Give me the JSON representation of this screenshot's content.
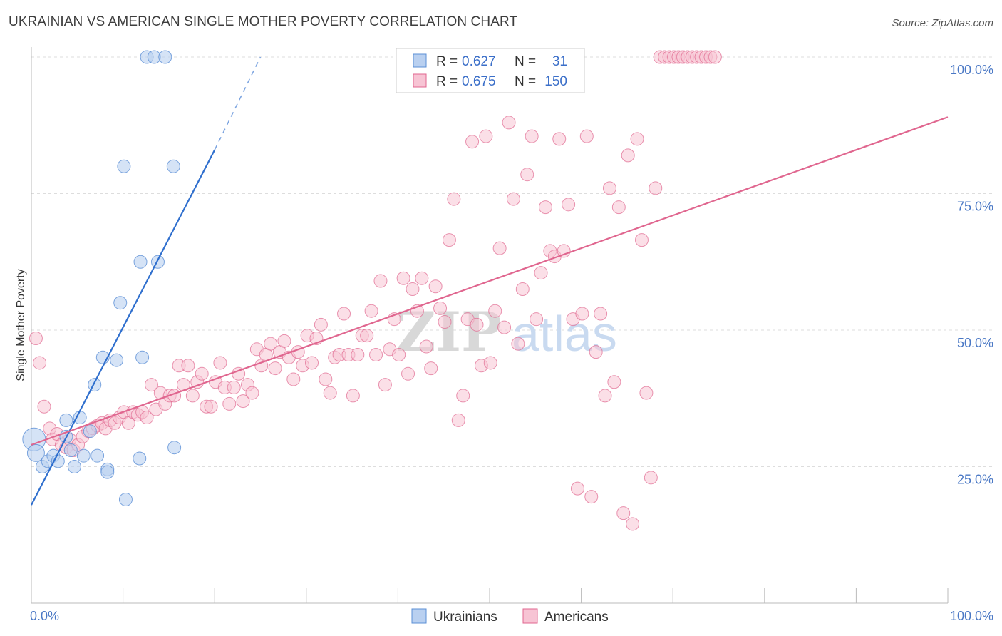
{
  "title": "UKRAINIAN VS AMERICAN SINGLE MOTHER POVERTY CORRELATION CHART",
  "source": "Source: ZipAtlas.com",
  "watermark": {
    "zip": "ZIP",
    "atlas": "atlas"
  },
  "colors": {
    "ukrainians": "#5b8fd6",
    "ukrainians_fill": "#b9d0f0",
    "americans": "#e0668f",
    "americans_fill": "#f7c4d4",
    "axis_label": "#4a78c5",
    "grid": "#dddddd"
  },
  "legend_box": {
    "rows": [
      {
        "r_label": "R = ",
        "r_value": "0.627",
        "n_label": "N = ",
        "n_value": "31"
      },
      {
        "r_label": "R = ",
        "r_value": "0.675",
        "n_label": "N = ",
        "n_value": "150"
      }
    ]
  },
  "bottom_legend": [
    "Ukrainians",
    "Americans"
  ],
  "chart_data": {
    "type": "scatter",
    "title": "UKRAINIAN VS AMERICAN SINGLE MOTHER POVERTY CORRELATION CHART",
    "xlabel": "",
    "ylabel": "Single Mother Poverty",
    "xlim": [
      0,
      100
    ],
    "ylim": [
      0,
      100
    ],
    "x_tick_labels": [
      "0.0%",
      "100.0%"
    ],
    "y_tick_labels": [
      "25.0%",
      "50.0%",
      "75.0%",
      "100.0%"
    ],
    "y_ticks": [
      25,
      50,
      75,
      100
    ],
    "grid": true,
    "legend_position": "top-center",
    "series": [
      {
        "name": "Ukrainians",
        "r": 0.627,
        "n": 31,
        "trend": {
          "x": [
            0,
            20
          ],
          "y": [
            18,
            83
          ],
          "dashed_to": [
            25,
            100
          ]
        },
        "points": [
          [
            0.3,
            30,
            16
          ],
          [
            0.5,
            27.5,
            12
          ],
          [
            1.2,
            25,
            9
          ],
          [
            1.8,
            26,
            9
          ],
          [
            2.4,
            27,
            9
          ],
          [
            2.9,
            26,
            9
          ],
          [
            3.8,
            30.5,
            9
          ],
          [
            3.8,
            33.5,
            9
          ],
          [
            4.3,
            28,
            9
          ],
          [
            4.7,
            25,
            9
          ],
          [
            5.3,
            34,
            9
          ],
          [
            5.7,
            27,
            9
          ],
          [
            6.4,
            31.5,
            9
          ],
          [
            7.2,
            27,
            9
          ],
          [
            8.3,
            24.5,
            9
          ],
          [
            8.3,
            24,
            9
          ],
          [
            6.9,
            40,
            9
          ],
          [
            7.8,
            45,
            9
          ],
          [
            9.3,
            44.5,
            9
          ],
          [
            9.7,
            55,
            9
          ],
          [
            10.3,
            19,
            9
          ],
          [
            11.8,
            26.5,
            9
          ],
          [
            12.1,
            45,
            9
          ],
          [
            11.9,
            62.5,
            9
          ],
          [
            13.8,
            62.5,
            9
          ],
          [
            10.1,
            80,
            9
          ],
          [
            15.5,
            80,
            9
          ],
          [
            15.6,
            28.5,
            9
          ],
          [
            12.6,
            100,
            9
          ],
          [
            13.4,
            100,
            9
          ],
          [
            14.6,
            100,
            9
          ]
        ]
      },
      {
        "name": "Americans",
        "r": 0.675,
        "n": 150,
        "trend": {
          "x": [
            0,
            100
          ],
          "y": [
            29,
            89
          ]
        },
        "points": [
          [
            0.5,
            48.5
          ],
          [
            0.9,
            44
          ],
          [
            1.4,
            36
          ],
          [
            2.0,
            32
          ],
          [
            2.3,
            30
          ],
          [
            2.8,
            31
          ],
          [
            3.3,
            29
          ],
          [
            3.8,
            28.5
          ],
          [
            4.2,
            30
          ],
          [
            4.6,
            28
          ],
          [
            5.1,
            29
          ],
          [
            5.6,
            30.5
          ],
          [
            6.2,
            31.5
          ],
          [
            6.7,
            32
          ],
          [
            7.2,
            32.5
          ],
          [
            7.7,
            33
          ],
          [
            8.1,
            32
          ],
          [
            8.6,
            33.5
          ],
          [
            9.1,
            33
          ],
          [
            9.6,
            34
          ],
          [
            10.1,
            35
          ],
          [
            10.6,
            33
          ],
          [
            11.1,
            35
          ],
          [
            11.6,
            34.5
          ],
          [
            12.1,
            35
          ],
          [
            12.6,
            34
          ],
          [
            13.1,
            40
          ],
          [
            13.6,
            35.5
          ],
          [
            14.1,
            38.5
          ],
          [
            14.6,
            36.5
          ],
          [
            15.1,
            38
          ],
          [
            15.6,
            38
          ],
          [
            16.1,
            43.5
          ],
          [
            16.6,
            40
          ],
          [
            17.1,
            43.5
          ],
          [
            17.6,
            38
          ],
          [
            18.1,
            40.5
          ],
          [
            18.6,
            42
          ],
          [
            19.1,
            36
          ],
          [
            19.6,
            36
          ],
          [
            20.1,
            40.5
          ],
          [
            20.6,
            44
          ],
          [
            21.1,
            39.5
          ],
          [
            21.6,
            36.5
          ],
          [
            22.1,
            39.5
          ],
          [
            22.6,
            42
          ],
          [
            23.1,
            37
          ],
          [
            23.6,
            40
          ],
          [
            24.1,
            38.5
          ],
          [
            24.6,
            46.5
          ],
          [
            25.1,
            43.5
          ],
          [
            25.6,
            45.5
          ],
          [
            26.1,
            47.5
          ],
          [
            26.6,
            43
          ],
          [
            27.1,
            46
          ],
          [
            27.6,
            48
          ],
          [
            28.1,
            45
          ],
          [
            28.6,
            41
          ],
          [
            29.1,
            46
          ],
          [
            29.6,
            43.5
          ],
          [
            30.1,
            49
          ],
          [
            30.6,
            44
          ],
          [
            31.1,
            48.5
          ],
          [
            31.6,
            51
          ],
          [
            32.1,
            41
          ],
          [
            32.6,
            38.5
          ],
          [
            33.1,
            45
          ],
          [
            33.6,
            45.5
          ],
          [
            34.1,
            53
          ],
          [
            34.6,
            45.5
          ],
          [
            35.1,
            38
          ],
          [
            35.6,
            45.5
          ],
          [
            36.1,
            49
          ],
          [
            36.6,
            49
          ],
          [
            37.1,
            53.5
          ],
          [
            37.6,
            45.5
          ],
          [
            38.1,
            59
          ],
          [
            38.6,
            40
          ],
          [
            39.1,
            46.5
          ],
          [
            39.6,
            52
          ],
          [
            40.1,
            45.5
          ],
          [
            40.6,
            59.5
          ],
          [
            41.1,
            42
          ],
          [
            41.6,
            57.5
          ],
          [
            42.1,
            53.5
          ],
          [
            42.6,
            59.5
          ],
          [
            43.1,
            47
          ],
          [
            43.6,
            43
          ],
          [
            44.1,
            58
          ],
          [
            44.6,
            54
          ],
          [
            45.1,
            51.5
          ],
          [
            45.6,
            66.5
          ],
          [
            46.1,
            74
          ],
          [
            46.6,
            33.5
          ],
          [
            47.1,
            38
          ],
          [
            47.6,
            52
          ],
          [
            48.1,
            84.5
          ],
          [
            48.6,
            51
          ],
          [
            49.1,
            43.5
          ],
          [
            49.6,
            85.5
          ],
          [
            50.1,
            44
          ],
          [
            50.6,
            53.5
          ],
          [
            51.1,
            65
          ],
          [
            51.6,
            50.5
          ],
          [
            52.1,
            88
          ],
          [
            52.6,
            74
          ],
          [
            53.1,
            47.5
          ],
          [
            53.6,
            57.5
          ],
          [
            54.1,
            78.5
          ],
          [
            54.6,
            85.5
          ],
          [
            55.1,
            52
          ],
          [
            55.6,
            60.5
          ],
          [
            56.1,
            72.5
          ],
          [
            56.6,
            64.5
          ],
          [
            57.1,
            63.5
          ],
          [
            57.6,
            85
          ],
          [
            58.1,
            64.5
          ],
          [
            58.6,
            73
          ],
          [
            59.1,
            52
          ],
          [
            59.6,
            21
          ],
          [
            60.1,
            53
          ],
          [
            60.6,
            85.5
          ],
          [
            61.1,
            19.5
          ],
          [
            61.6,
            46
          ],
          [
            62.1,
            53
          ],
          [
            62.6,
            38
          ],
          [
            63.1,
            76
          ],
          [
            63.6,
            40.5
          ],
          [
            64.1,
            72.5
          ],
          [
            64.6,
            16.5
          ],
          [
            65.1,
            82
          ],
          [
            65.6,
            14.5
          ],
          [
            66.1,
            85
          ],
          [
            66.6,
            66.5
          ],
          [
            67.1,
            38.5
          ],
          [
            67.6,
            23
          ],
          [
            68.1,
            76
          ],
          [
            68.6,
            100
          ],
          [
            69.1,
            100
          ],
          [
            69.6,
            100
          ],
          [
            70.1,
            100
          ],
          [
            70.6,
            100
          ],
          [
            71.1,
            100
          ],
          [
            71.6,
            100
          ],
          [
            72.1,
            100
          ],
          [
            72.6,
            100
          ],
          [
            73.1,
            100
          ],
          [
            73.6,
            100
          ],
          [
            74.1,
            100
          ],
          [
            74.6,
            100
          ]
        ]
      }
    ]
  }
}
